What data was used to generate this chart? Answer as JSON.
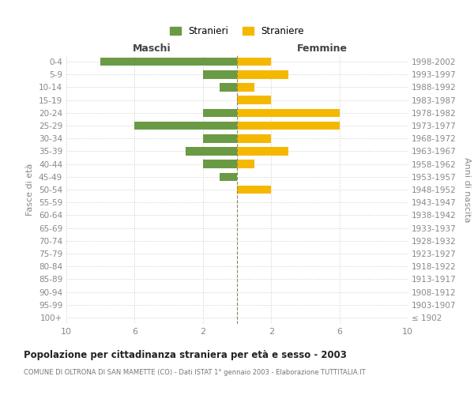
{
  "age_groups": [
    "100+",
    "95-99",
    "90-94",
    "85-89",
    "80-84",
    "75-79",
    "70-74",
    "65-69",
    "60-64",
    "55-59",
    "50-54",
    "45-49",
    "40-44",
    "35-39",
    "30-34",
    "25-29",
    "20-24",
    "15-19",
    "10-14",
    "5-9",
    "0-4"
  ],
  "birth_years": [
    "≤ 1902",
    "1903-1907",
    "1908-1912",
    "1913-1917",
    "1918-1922",
    "1923-1927",
    "1928-1932",
    "1933-1937",
    "1938-1942",
    "1943-1947",
    "1948-1952",
    "1953-1957",
    "1958-1962",
    "1963-1967",
    "1968-1972",
    "1973-1977",
    "1978-1982",
    "1983-1987",
    "1988-1992",
    "1993-1997",
    "1998-2002"
  ],
  "stranieri": [
    0,
    0,
    0,
    0,
    0,
    0,
    0,
    0,
    0,
    0,
    0,
    1,
    2,
    3,
    2,
    6,
    2,
    0,
    1,
    2,
    8
  ],
  "straniere": [
    0,
    0,
    0,
    0,
    0,
    0,
    0,
    0,
    0,
    0,
    2,
    0,
    1,
    3,
    2,
    6,
    6,
    2,
    1,
    3,
    2
  ],
  "color_stranieri": "#6b9a45",
  "color_straniere": "#f5b800",
  "title": "Popolazione per cittadinanza straniera per età e sesso - 2003",
  "subtitle": "COMUNE DI OLTRONA DI SAN MAMETTE (CO) - Dati ISTAT 1° gennaio 2003 - Elaborazione TUTTITALIA.IT",
  "label_maschi": "Maschi",
  "label_femmine": "Femmine",
  "ylabel_left": "Fasce di età",
  "ylabel_right": "Anni di nascita",
  "legend_stranieri": "Stranieri",
  "legend_straniere": "Straniere",
  "xlim": 10,
  "xtick_positions": [
    -10,
    -6,
    -2,
    2,
    6,
    10
  ],
  "xtick_labels": [
    "10",
    "6",
    "2",
    "2",
    "6",
    "10"
  ],
  "background_color": "#ffffff",
  "grid_color": "#cccccc",
  "text_color": "#888888",
  "bar_height": 0.65
}
